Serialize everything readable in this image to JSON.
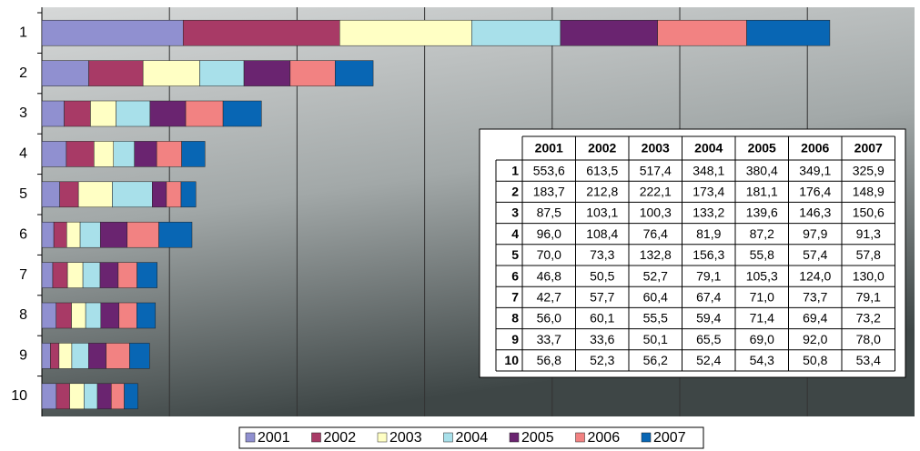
{
  "chart_data": {
    "type": "stacked-barh",
    "categories": [
      "1",
      "2",
      "3",
      "4",
      "5",
      "6",
      "7",
      "8",
      "9",
      "10"
    ],
    "series": [
      {
        "name": "2001",
        "color": "#9090d0",
        "values": [
          553.6,
          183.7,
          87.5,
          96.0,
          70.0,
          46.8,
          42.7,
          56.0,
          33.7,
          56.8
        ],
        "value_labels": [
          "553,6",
          "183,7",
          "87,5",
          "96,0",
          "70,0",
          "46,8",
          "42,7",
          "56,0",
          "33,7",
          "56,8"
        ]
      },
      {
        "name": "2002",
        "color": "#a83a66",
        "values": [
          613.5,
          212.8,
          103.1,
          108.4,
          73.3,
          50.5,
          57.7,
          60.1,
          33.6,
          52.3
        ],
        "value_labels": [
          "613,5",
          "212,8",
          "103,1",
          "108,4",
          "73,3",
          "50,5",
          "57,7",
          "60,1",
          "33,6",
          "52,3"
        ]
      },
      {
        "name": "2003",
        "color": "#ffffc4",
        "values": [
          517.4,
          222.1,
          100.3,
          76.4,
          132.8,
          52.7,
          60.4,
          55.5,
          50.1,
          56.2
        ],
        "value_labels": [
          "517,4",
          "222,1",
          "100,3",
          "76,4",
          "132,8",
          "52,7",
          "60,4",
          "55,5",
          "50,1",
          "56,2"
        ]
      },
      {
        "name": "2004",
        "color": "#a8e0ea",
        "values": [
          348.1,
          173.4,
          133.2,
          81.9,
          156.3,
          79.1,
          67.4,
          59.4,
          65.5,
          52.4
        ],
        "value_labels": [
          "348,1",
          "173,4",
          "133,2",
          "81,9",
          "156,3",
          "79,1",
          "67,4",
          "59,4",
          "65,5",
          "52,4"
        ]
      },
      {
        "name": "2005",
        "color": "#6a2470",
        "values": [
          380.4,
          181.1,
          139.6,
          87.2,
          55.8,
          105.3,
          71.0,
          71.4,
          69.0,
          54.3
        ],
        "value_labels": [
          "380,4",
          "181,1",
          "139,6",
          "87,2",
          "55,8",
          "105,3",
          "71,0",
          "71,4",
          "69,0",
          "54,3"
        ]
      },
      {
        "name": "2006",
        "color": "#f28282",
        "values": [
          349.1,
          176.4,
          146.3,
          97.9,
          57.4,
          124.0,
          73.7,
          69.4,
          92.0,
          50.8
        ],
        "value_labels": [
          "349,1",
          "176,4",
          "146,3",
          "97,9",
          "57,4",
          "124,0",
          "73,7",
          "69,4",
          "92,0",
          "50,8"
        ]
      },
      {
        "name": "2007",
        "color": "#0866b4",
        "values": [
          325.9,
          148.9,
          150.6,
          91.3,
          57.8,
          130.0,
          79.1,
          73.2,
          78.0,
          53.4
        ],
        "value_labels": [
          "325,9",
          "148,9",
          "150,6",
          "91,3",
          "57,8",
          "130,0",
          "79,1",
          "73,2",
          "78,0",
          "53,4"
        ]
      }
    ],
    "xlim": [
      0,
      3420
    ],
    "xticks": [
      0,
      500,
      1000,
      1500,
      2000,
      2500,
      3000
    ],
    "grid": true,
    "legend": "bottom"
  }
}
